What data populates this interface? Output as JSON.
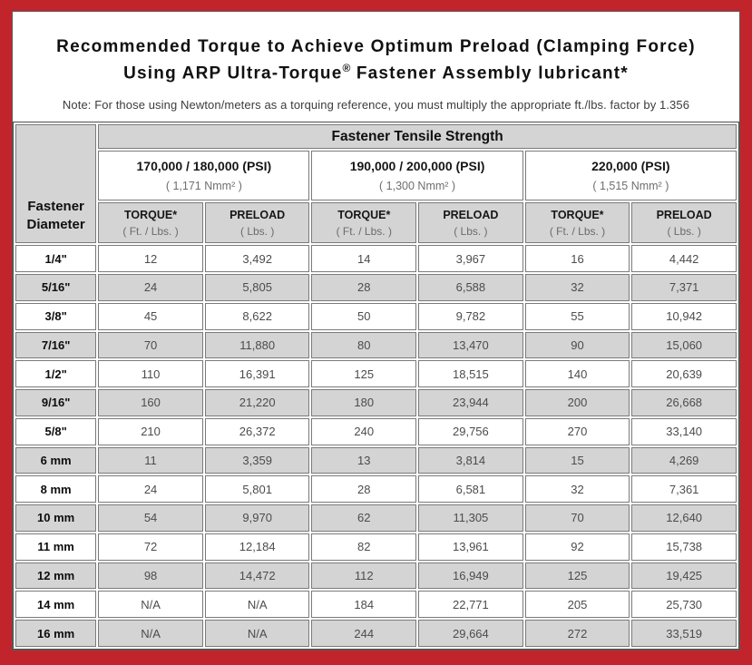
{
  "colors": {
    "frame_red": "#c2242c",
    "header_gray": "#d4d4d4",
    "cell_border_gray": "#7a7a7a"
  },
  "title": {
    "line1": "Recommended Torque to Achieve Optimum Preload (Clamping Force)",
    "line2_prefix": "Using ARP Ultra-Torque",
    "line2_reg_mark": "®",
    "line2_suffix": " Fastener Assembly lubricant*",
    "note": "Note: For those using Newton/meters as a torquing reference, you must multiply the appropriate ft./lbs. factor by 1.356"
  },
  "table": {
    "corner_line1": "Fastener",
    "corner_line2": "Diameter",
    "tensile_header": "Fastener Tensile Strength",
    "strength_groups": [
      {
        "psi": "170,000 / 180,000 (PSI)",
        "nmm": "( 1,171 Nmm² )"
      },
      {
        "psi": "190,000 / 200,000 (PSI)",
        "nmm": "( 1,300 Nmm² )"
      },
      {
        "psi": "220,000 (PSI)",
        "nmm": "( 1,515 Nmm² )"
      }
    ],
    "sub_headers": {
      "torque_label": "TORQUE*",
      "torque_unit": "( Ft. / Lbs. )",
      "preload_label": "PRELOAD",
      "preload_unit": "( Lbs. )"
    },
    "rows": [
      {
        "diameter": "1/4\"",
        "values": [
          "12",
          "3,492",
          "14",
          "3,967",
          "16",
          "4,442"
        ]
      },
      {
        "diameter": "5/16\"",
        "values": [
          "24",
          "5,805",
          "28",
          "6,588",
          "32",
          "7,371"
        ]
      },
      {
        "diameter": "3/8\"",
        "values": [
          "45",
          "8,622",
          "50",
          "9,782",
          "55",
          "10,942"
        ]
      },
      {
        "diameter": "7/16\"",
        "values": [
          "70",
          "11,880",
          "80",
          "13,470",
          "90",
          "15,060"
        ]
      },
      {
        "diameter": "1/2\"",
        "values": [
          "110",
          "16,391",
          "125",
          "18,515",
          "140",
          "20,639"
        ]
      },
      {
        "diameter": "9/16\"",
        "values": [
          "160",
          "21,220",
          "180",
          "23,944",
          "200",
          "26,668"
        ]
      },
      {
        "diameter": "5/8\"",
        "values": [
          "210",
          "26,372",
          "240",
          "29,756",
          "270",
          "33,140"
        ]
      },
      {
        "diameter": "6 mm",
        "values": [
          "11",
          "3,359",
          "13",
          "3,814",
          "15",
          "4,269"
        ]
      },
      {
        "diameter": "8 mm",
        "values": [
          "24",
          "5,801",
          "28",
          "6,581",
          "32",
          "7,361"
        ]
      },
      {
        "diameter": "10 mm",
        "values": [
          "54",
          "9,970",
          "62",
          "11,305",
          "70",
          "12,640"
        ]
      },
      {
        "diameter": "11 mm",
        "values": [
          "72",
          "12,184",
          "82",
          "13,961",
          "92",
          "15,738"
        ]
      },
      {
        "diameter": "12 mm",
        "values": [
          "98",
          "14,472",
          "112",
          "16,949",
          "125",
          "19,425"
        ]
      },
      {
        "diameter": "14 mm",
        "values": [
          "N/A",
          "N/A",
          "184",
          "22,771",
          "205",
          "25,730"
        ]
      },
      {
        "diameter": "16 mm",
        "values": [
          "N/A",
          "N/A",
          "244",
          "29,664",
          "272",
          "33,519"
        ]
      }
    ]
  }
}
